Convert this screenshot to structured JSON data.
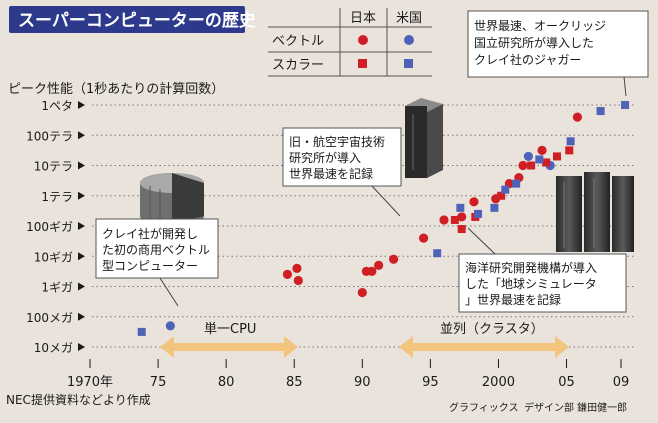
{
  "header": {
    "title": "スーパーコンピューターの歴史"
  },
  "legend": {
    "col_japan": "日本",
    "col_us": "米国",
    "row_vector": "ベクトル",
    "row_scalar": "スカラー"
  },
  "axis": {
    "ylabel": "ピーク性能（1秒あたりの計算回数）",
    "yticks": [
      "1ペタ",
      "100テラ",
      "10テラ",
      "1テラ",
      "100ギガ",
      "10ギガ",
      "1ギガ",
      "100メガ",
      "10メガ"
    ],
    "xticks": [
      "1970年",
      "75",
      "80",
      "85",
      "90",
      "95",
      "2000",
      "05",
      "09"
    ]
  },
  "annotations": {
    "cray1": "クレイ社が開発した初の商用ベクトル型コンピューター",
    "nal": "旧・航空宇宙技術研究所が導入世界最速を記録",
    "earth_sim": "海洋研究開発機構が導入した「地球シミュレータ」世界最速を記録",
    "jaguar": "世界最速、オークリッジ国立研究所が導入したクレイ社のジャガー"
  },
  "eras": {
    "single_cpu": "単一CPU",
    "parallel": "並列（クラスタ）"
  },
  "credits": {
    "source": "NEC提供資料などより作成",
    "graphics": "グラフィックス",
    "designer": "デザイン部 鎌田健一郎"
  },
  "colors": {
    "japan": "#cf1f25",
    "us": "#4e63b8",
    "frame": "#333333",
    "arrow": "#f2c47e",
    "title_bg": "#2d3a8c"
  },
  "chart_data": {
    "type": "scatter",
    "ylabel": "ピーク性能（1秒あたりの計算回数）",
    "ylog": true,
    "ylim_exp": [
      7,
      15.5
    ],
    "xlim": [
      1967.5,
      2010.5
    ],
    "series": [
      {
        "name": "日本 ベクトル",
        "shape": "circle",
        "color": "#cf1f25",
        "points": [
          [
            1984.5,
            9.4
          ],
          [
            1985.2,
            9.6
          ],
          [
            1985.3,
            9.2
          ],
          [
            1990,
            8.8
          ],
          [
            1990.3,
            9.5
          ],
          [
            1990.7,
            9.5
          ],
          [
            1991.2,
            9.7
          ],
          [
            1992.3,
            9.9
          ],
          [
            1994.5,
            10.6
          ],
          [
            1996,
            11.2
          ],
          [
            1997.3,
            11.3
          ],
          [
            1998.2,
            11.8
          ],
          [
            1999.8,
            11.9
          ],
          [
            2000.8,
            12.4
          ],
          [
            2001.5,
            12.6
          ],
          [
            2001.8,
            13.0
          ],
          [
            2003.2,
            13.5
          ],
          [
            2005.8,
            14.6
          ]
        ]
      },
      {
        "name": "米国 ベクトル",
        "shape": "circle",
        "color": "#4e63b8",
        "points": [
          [
            1975.9,
            7.7
          ],
          [
            2002.2,
            13.3
          ],
          [
            2003.8,
            13.0
          ]
        ]
      },
      {
        "name": "日本 スカラー",
        "shape": "square",
        "color": "#cf1f25",
        "points": [
          [
            1996.8,
            11.2
          ],
          [
            1997.3,
            10.9
          ],
          [
            1998.3,
            11.3
          ],
          [
            2000.2,
            12.0
          ],
          [
            2002.4,
            13.0
          ],
          [
            2003.5,
            13.1
          ],
          [
            2004.3,
            13.3
          ],
          [
            2005.2,
            13.5
          ]
        ]
      },
      {
        "name": "米国 スカラー",
        "shape": "square",
        "color": "#4e63b8",
        "points": [
          [
            1973.8,
            7.5
          ],
          [
            1995.5,
            10.1
          ],
          [
            1997.2,
            11.6
          ],
          [
            1998.5,
            11.4
          ],
          [
            1999.7,
            11.6
          ],
          [
            2000.5,
            12.2
          ],
          [
            2001.3,
            12.4
          ],
          [
            2003.0,
            13.2
          ],
          [
            2005.3,
            13.8
          ],
          [
            2007.5,
            14.8
          ],
          [
            2009.3,
            15.0
          ]
        ]
      }
    ]
  }
}
